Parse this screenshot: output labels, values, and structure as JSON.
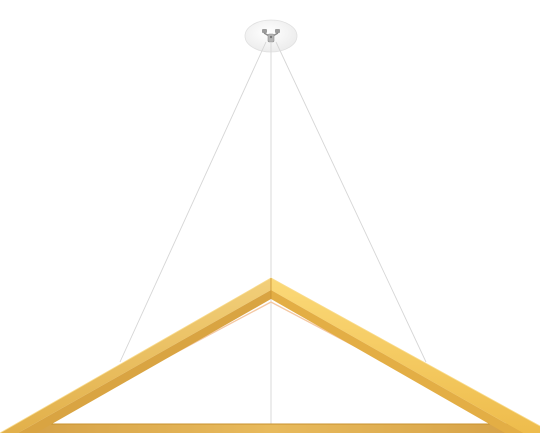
{
  "product": {
    "icon": "triangle-pendant-light-icon",
    "colors": {
      "background": "#ffffff",
      "frame_light": "#f7d37a",
      "frame_mid": "#e9bb55",
      "frame_dark": "#d49e37",
      "frame_shadow": "#c48c2c",
      "diffuser_glow": "#f6c9a4",
      "cable": "#d9d9d9",
      "canopy": "#f2f2f2",
      "canopy_edge": "#dcdcdc",
      "hardware": "#a9a9a9"
    }
  }
}
